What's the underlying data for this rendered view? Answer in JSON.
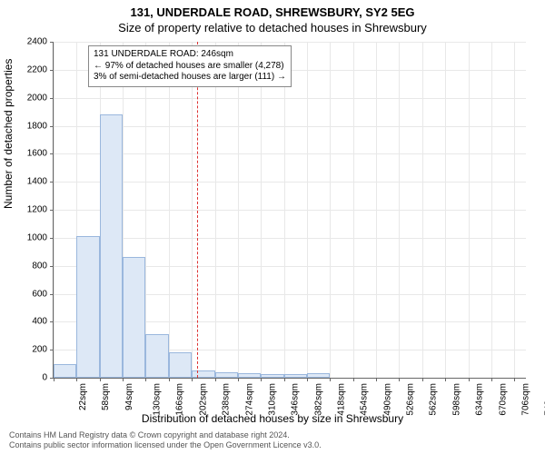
{
  "title": "131, UNDERDALE ROAD, SHREWSBURY, SY2 5EG",
  "subtitle": "Size of property relative to detached houses in Shrewsbury",
  "ylabel": "Number of detached properties",
  "xlabel": "Distribution of detached houses by size in Shrewsbury",
  "footer_line1": "Contains HM Land Registry data © Crown copyright and database right 2024.",
  "footer_line2": "Contains public sector information licensed under the Open Government Licence v3.0.",
  "annotation": {
    "line1": "131 UNDERDALE ROAD: 246sqm",
    "line2": "← 97% of detached houses are smaller (4,278)",
    "line3": "3% of semi-detached houses are larger (111) →"
  },
  "chart": {
    "type": "histogram",
    "ylim": [
      0,
      2400
    ],
    "ytick_step": 200,
    "xlim": [
      22,
      760
    ],
    "xtick_start": 22,
    "xtick_step": 36,
    "xtick_count": 21,
    "xtick_suffix": "sqm",
    "ref_value": 246,
    "ref_color": "#d33",
    "bar_fill": "#dde8f6",
    "bar_stroke": "#9ab7dd",
    "grid_color": "#e8e8e8",
    "background": "#ffffff",
    "bars": [
      {
        "x": 22,
        "w": 36,
        "v": 100
      },
      {
        "x": 58,
        "w": 36,
        "v": 1010
      },
      {
        "x": 94,
        "w": 36,
        "v": 1880
      },
      {
        "x": 130,
        "w": 36,
        "v": 860
      },
      {
        "x": 166,
        "w": 36,
        "v": 310
      },
      {
        "x": 202,
        "w": 36,
        "v": 180
      },
      {
        "x": 238,
        "w": 36,
        "v": 50
      },
      {
        "x": 274,
        "w": 36,
        "v": 40
      },
      {
        "x": 310,
        "w": 36,
        "v": 30
      },
      {
        "x": 346,
        "w": 36,
        "v": 25
      },
      {
        "x": 382,
        "w": 36,
        "v": 25
      },
      {
        "x": 418,
        "w": 36,
        "v": 30
      }
    ]
  },
  "fonts": {
    "title_size": 13,
    "label_size": 12,
    "tick_size": 10,
    "annotation_size": 10,
    "footer_size": 9
  }
}
